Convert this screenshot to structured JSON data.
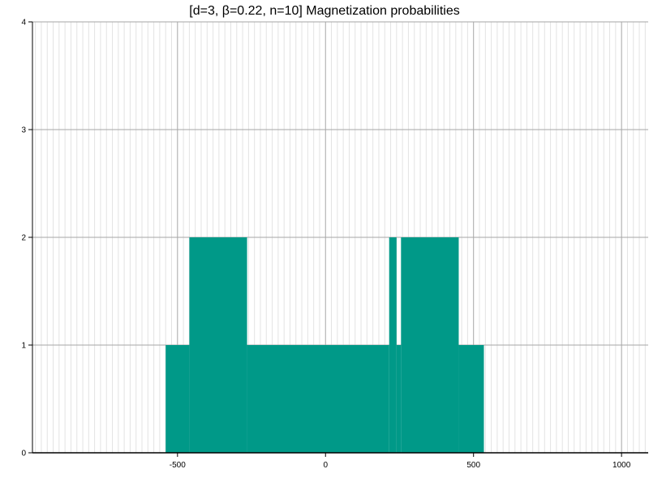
{
  "chart_data": {
    "type": "bar",
    "title": "[d=3, β=0.22, n=10] Magnetization probabilities",
    "xlabel": "",
    "ylabel": "",
    "xlim": [
      -990,
      1090
    ],
    "ylim": [
      0,
      4
    ],
    "x_ticks": [
      -500,
      0,
      500,
      1000
    ],
    "x_tick_labels": [
      "-500",
      "0",
      "500",
      "1000"
    ],
    "y_ticks": [
      0,
      1,
      2,
      3,
      4
    ],
    "y_tick_labels": [
      "0",
      "1",
      "2",
      "3",
      "4"
    ],
    "grid": true,
    "minor_grid_step_x": 20,
    "bar_color": "#009988",
    "bars": [
      {
        "x0": -540,
        "x1": -460,
        "value": 1
      },
      {
        "x0": -460,
        "x1": -265,
        "value": 2
      },
      {
        "x0": -265,
        "x1": 215,
        "value": 1
      },
      {
        "x0": 215,
        "x1": 240,
        "value": 2
      },
      {
        "x0": 240,
        "x1": 255,
        "value": 1
      },
      {
        "x0": 255,
        "x1": 450,
        "value": 2
      },
      {
        "x0": 450,
        "x1": 535,
        "value": 1
      }
    ]
  }
}
